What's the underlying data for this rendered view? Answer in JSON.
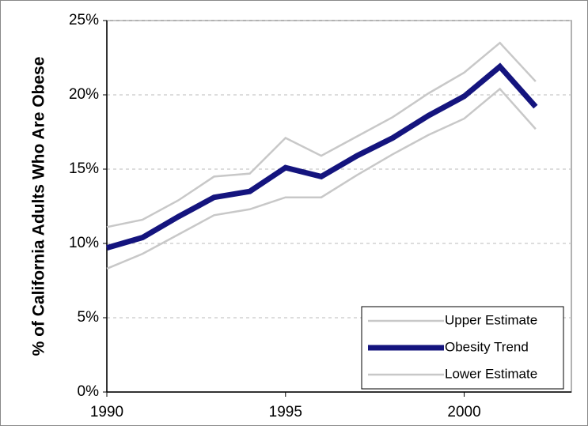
{
  "chart_data": {
    "type": "line",
    "y_label": "% of California Adults Who Are Obese",
    "x": [
      1990,
      1991,
      1992,
      1993,
      1994,
      1995,
      1996,
      1997,
      1998,
      1999,
      2000,
      2001,
      2002
    ],
    "series": [
      {
        "name": "Upper Estimate",
        "color": "#c8c8c8",
        "values": [
          11.1,
          11.6,
          12.9,
          14.5,
          14.7,
          17.1,
          15.9,
          17.2,
          18.5,
          20.1,
          21.5,
          23.5,
          20.9
        ]
      },
      {
        "name": "Obesity Trend",
        "color": "#14147e",
        "values": [
          9.7,
          10.4,
          11.8,
          13.1,
          13.5,
          15.1,
          14.5,
          15.9,
          17.1,
          18.6,
          19.9,
          21.9,
          19.2
        ]
      },
      {
        "name": "Lower Estimate",
        "color": "#c8c8c8",
        "values": [
          8.3,
          9.3,
          10.6,
          11.9,
          12.3,
          13.1,
          13.1,
          14.6,
          16.0,
          17.3,
          18.4,
          20.4,
          17.7
        ]
      }
    ],
    "xlim": [
      1990,
      2003
    ],
    "xticks": [
      1990,
      1995,
      2000
    ],
    "ylim": [
      0,
      25
    ],
    "yticks": [
      {
        "value": 0,
        "label": "0%"
      },
      {
        "value": 5,
        "label": "5%"
      },
      {
        "value": 10,
        "label": "10%"
      },
      {
        "value": 15,
        "label": "15%"
      },
      {
        "value": 20,
        "label": "20%"
      },
      {
        "value": 25,
        "label": "25%"
      }
    ],
    "grid": true,
    "legend": "lower right"
  }
}
